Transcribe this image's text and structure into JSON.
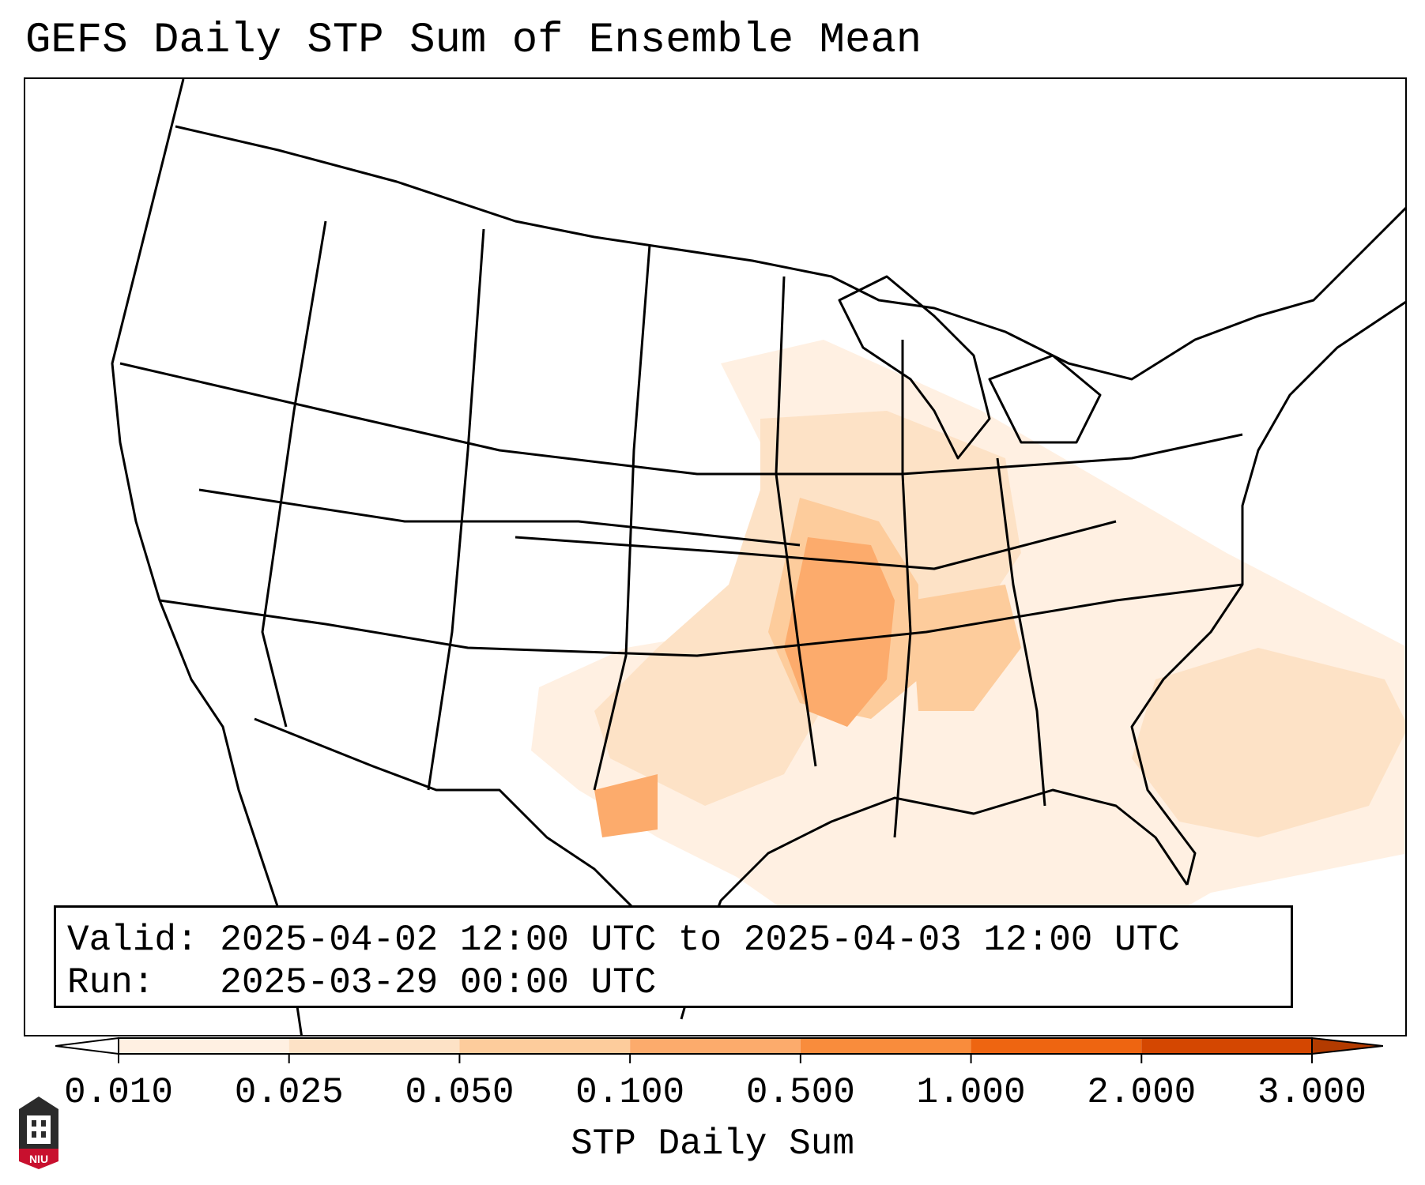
{
  "title": "GEFS Daily STP Sum of Ensemble Mean",
  "info": {
    "valid_line": "Valid: 2025-04-02 12:00 UTC to 2025-04-03 12:00 UTC",
    "run_line": "Run:   2025-03-29 00:00 UTC"
  },
  "colorbar": {
    "label": "STP Daily Sum",
    "ticks": [
      "0.010",
      "0.025",
      "0.050",
      "0.100",
      "0.500",
      "1.000",
      "2.000",
      "3.000"
    ],
    "colors": [
      "#fff0e2",
      "#fde2c6",
      "#fdcc9c",
      "#fcab6c",
      "#f98c3c",
      "#ee6511",
      "#d44701"
    ],
    "extend": "both"
  },
  "logo": {
    "text": "NIU",
    "colors": {
      "red": "#c8102e",
      "dark": "#2b2b2b"
    }
  },
  "field_colors": {
    "light": "#fff0e2",
    "pale": "#fde2c6",
    "mid": "#fdcc9c",
    "strong": "#fcab6c"
  }
}
